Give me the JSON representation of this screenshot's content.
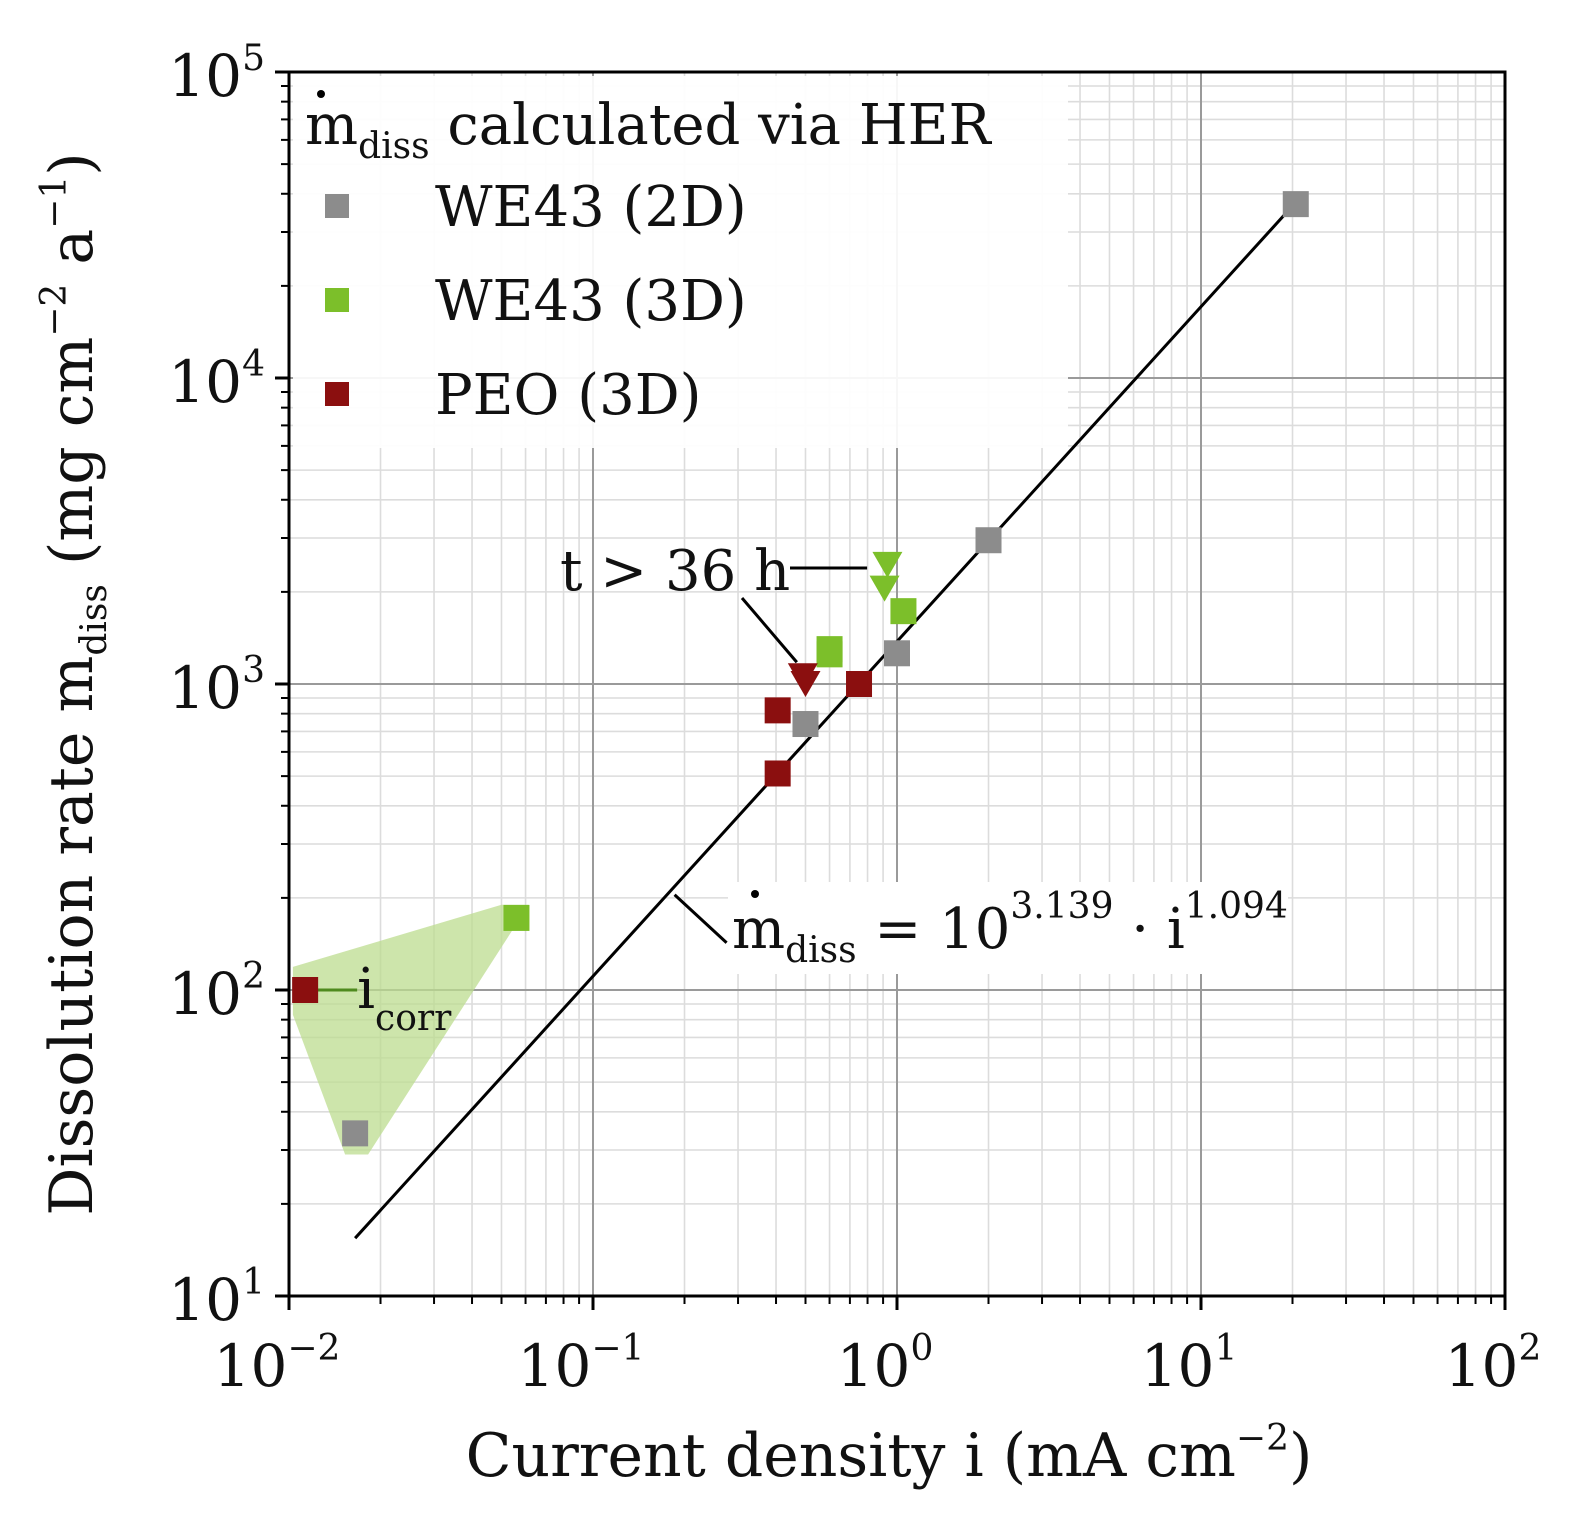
{
  "chart_data": {
    "type": "scatter",
    "x_scale": "log",
    "y_scale": "log",
    "xlim": [
      0.01,
      100
    ],
    "ylim": [
      10,
      100000
    ],
    "grid": true,
    "legend_position": "top-left",
    "xlabel": {
      "main": "Current density i (mA cm",
      "sup": "−2",
      "end": ")"
    },
    "ylabel": {
      "pre": "Dissolution rate ",
      "m": "m",
      "sub": "diss",
      "post": " (mg cm",
      "sup1": "−2",
      "mid": " a",
      "sup2": "−1",
      "end": ")"
    },
    "x_ticks": [
      {
        "base": "10",
        "exp": "−2",
        "value": 0.01
      },
      {
        "base": "10",
        "exp": "−1",
        "value": 0.1
      },
      {
        "base": "10",
        "exp": "0",
        "value": 1
      },
      {
        "base": "10",
        "exp": "1",
        "value": 10
      },
      {
        "base": "10",
        "exp": "2",
        "value": 100
      }
    ],
    "y_ticks": [
      {
        "base": "10",
        "exp": "1",
        "value": 10
      },
      {
        "base": "10",
        "exp": "2",
        "value": 100
      },
      {
        "base": "10",
        "exp": "3",
        "value": 1000
      },
      {
        "base": "10",
        "exp": "4",
        "value": 10000
      },
      {
        "base": "10",
        "exp": "5",
        "value": 100000
      }
    ],
    "legend": {
      "title": {
        "m": "m",
        "sub": "diss",
        "rest": " calculated via HER"
      },
      "entries": [
        {
          "label": "WE43 (2D)",
          "color": "#8c8c8c"
        },
        {
          "label": "WE43 (3D)",
          "color": "#7cbf2a"
        },
        {
          "label": "PEO (3D)",
          "color": "#8b0f0f"
        }
      ]
    },
    "series": [
      {
        "name": "WE43 (2D)",
        "color": "#8c8c8c",
        "points": [
          {
            "x": 20.5,
            "y": 37000,
            "marker": "square"
          },
          {
            "x": 2.0,
            "y": 2950,
            "marker": "square"
          },
          {
            "x": 1.0,
            "y": 1260,
            "marker": "square"
          },
          {
            "x": 0.5,
            "y": 740,
            "marker": "square"
          },
          {
            "x": 0.0165,
            "y": 34,
            "marker": "square"
          }
        ]
      },
      {
        "name": "WE43 (3D)",
        "color": "#7cbf2a",
        "points": [
          {
            "x": 1.05,
            "y": 1730,
            "marker": "square"
          },
          {
            "x": 0.6,
            "y": 1300,
            "marker": "square"
          },
          {
            "x": 0.6,
            "y": 1250,
            "marker": "square"
          },
          {
            "x": 0.93,
            "y": 2450,
            "marker": "triangle-down"
          },
          {
            "x": 0.91,
            "y": 2050,
            "marker": "triangle-down"
          },
          {
            "x": 0.056,
            "y": 172,
            "marker": "square"
          }
        ]
      },
      {
        "name": "PEO (3D)",
        "color": "#8b0f0f",
        "points": [
          {
            "x": 0.75,
            "y": 1000,
            "marker": "square"
          },
          {
            "x": 0.405,
            "y": 820,
            "marker": "square"
          },
          {
            "x": 0.405,
            "y": 510,
            "marker": "square"
          },
          {
            "x": 0.49,
            "y": 1060,
            "marker": "triangle-down"
          },
          {
            "x": 0.5,
            "y": 1000,
            "marker": "triangle-down"
          },
          {
            "x": 0.0113,
            "y": 100,
            "marker": "square"
          }
        ]
      }
    ],
    "fit_line": {
      "x_range": [
        0.0165,
        20
      ],
      "log_coefficient": 3.139,
      "exponent": 1.094,
      "label": {
        "m": "m",
        "sub": "diss",
        "eq": " = 10",
        "sup1": "3.139",
        "dot": " · i",
        "sup2": "1.094"
      }
    },
    "icorr_region": {
      "color": "#bcdc8f",
      "vertices": [
        [
          0.0103,
          119
        ],
        [
          0.05,
          190
        ],
        [
          0.0615,
          190
        ],
        [
          0.0182,
          29
        ],
        [
          0.0153,
          29
        ],
        [
          0.0103,
          83
        ]
      ]
    },
    "annotations": {
      "icorr": {
        "i": "i",
        "sub": "corr",
        "color": "#4e8a1e"
      },
      "t36": {
        "text": "t > 36 h"
      }
    }
  }
}
